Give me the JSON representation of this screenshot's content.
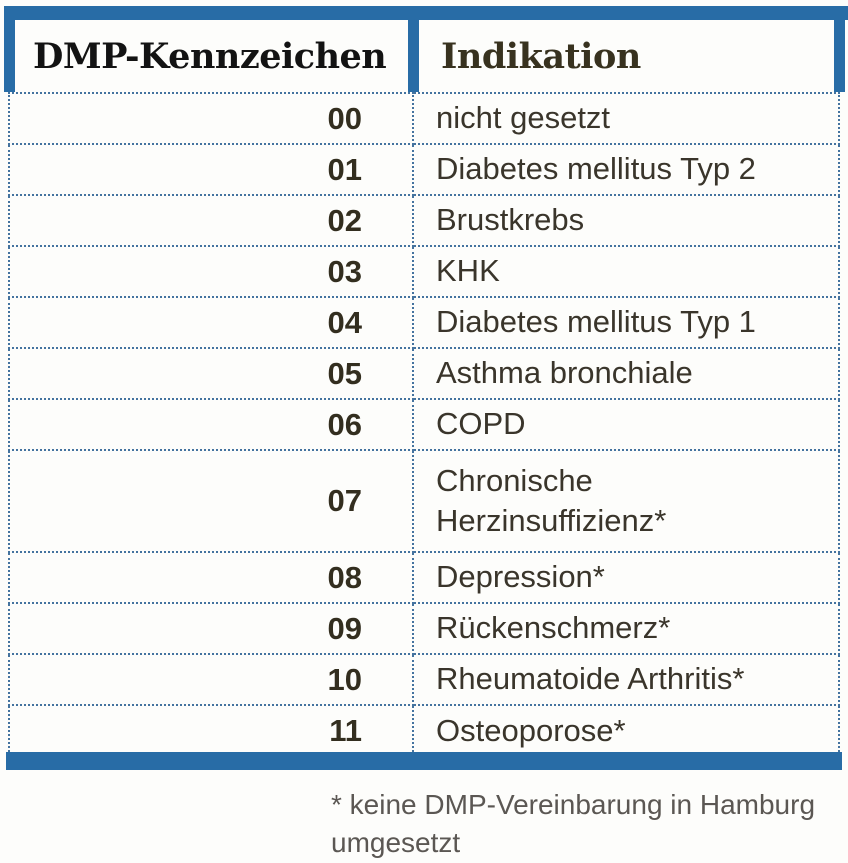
{
  "table": {
    "columns": [
      {
        "label": "DMP-Kennzeichen"
      },
      {
        "label": "Indikation"
      }
    ],
    "rows": [
      {
        "code": "00",
        "indication": "nicht gesetzt"
      },
      {
        "code": "01",
        "indication": "Diabetes mellitus Typ 2"
      },
      {
        "code": "02",
        "indication": "Brustkrebs"
      },
      {
        "code": "03",
        "indication": "KHK"
      },
      {
        "code": "04",
        "indication": "Diabetes mellitus Typ 1"
      },
      {
        "code": "05",
        "indication": "Asthma bronchiale"
      },
      {
        "code": "06",
        "indication": "COPD"
      },
      {
        "code": "07",
        "indication": "Chronische Herzinsuffizienz*"
      },
      {
        "code": "08",
        "indication": "Depression*"
      },
      {
        "code": "09",
        "indication": "Rückenschmerz*"
      },
      {
        "code": "10",
        "indication": "Rheumatoide Arthritis*"
      },
      {
        "code": "11",
        "indication": "Osteoporose*"
      }
    ]
  },
  "footnote": "* keine DMP-Vereinbarung in Hamburg umgesetzt",
  "colors": {
    "accent_blue": "#286ca6",
    "dotted_line_blue": "#44739f",
    "header_left_text": "#131313",
    "header_right_text": "#38321f",
    "code_text": "#332e1f",
    "body_text": "#3a352b",
    "footnote_text": "#5b5753"
  }
}
